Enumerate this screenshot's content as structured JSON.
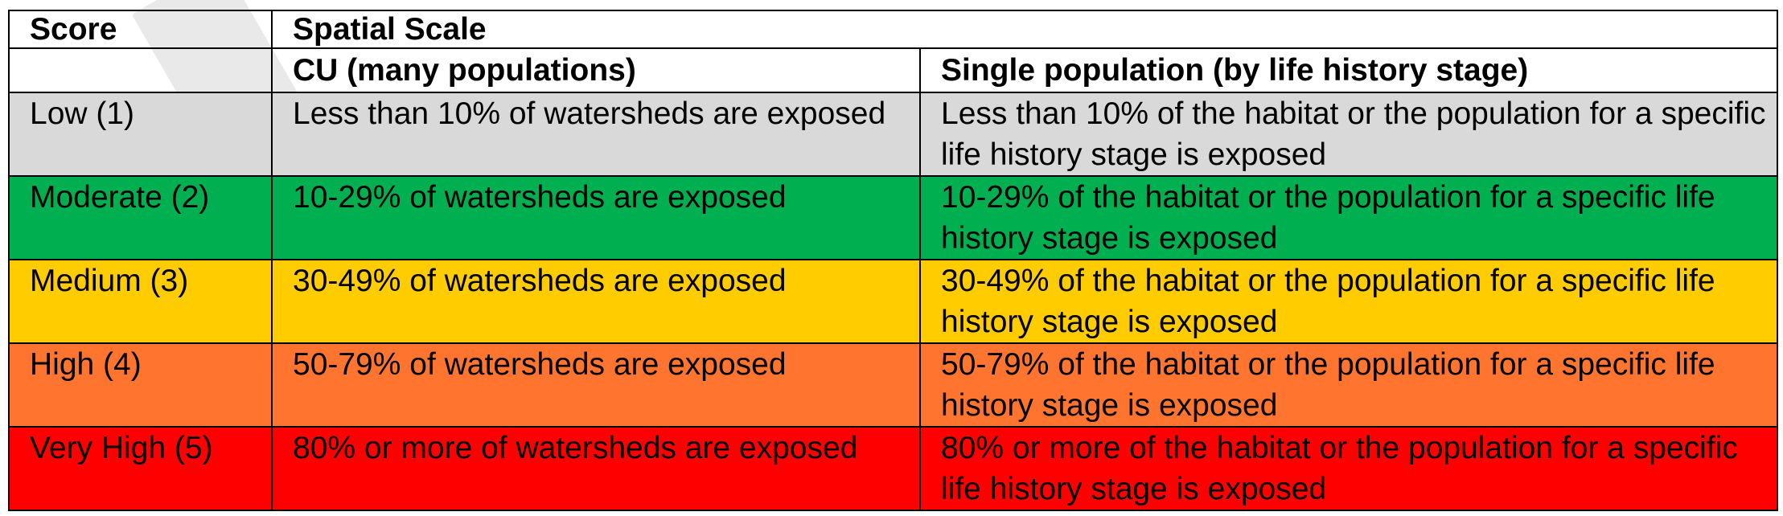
{
  "header": {
    "score_label": "Score",
    "spatial_scale_label": "Spatial Scale",
    "cu_label": "CU (many populations)",
    "single_label": "Single population (by life history stage)"
  },
  "rows": [
    {
      "score": "Low (1)",
      "cu": "Less than 10% of watersheds are exposed",
      "single": "Less than 10% of the habitat or the population for a specific life history stage is exposed",
      "color": "#d9d9d9"
    },
    {
      "score": "Moderate (2)",
      "cu": "10-29% of watersheds are exposed",
      "single": "10-29% of the habitat or the population for a specific life history stage is exposed",
      "color": "#00b050"
    },
    {
      "score": "Medium (3)",
      "cu": "30-49% of watersheds are exposed",
      "single": "30-49% of the habitat or the population for a specific life history stage is exposed",
      "color": "#ffcc00"
    },
    {
      "score": "High (4)",
      "cu": "50-79% of watersheds are exposed",
      "single": "50-79% of the habitat or the population for a specific life history stage is exposed",
      "color": "#ff7530"
    },
    {
      "score": "Very High (5)",
      "cu": "80% or more of watersheds are exposed",
      "single": "80% or more of the habitat or the population for a specific life history stage is exposed",
      "color": "#ff0000"
    }
  ]
}
